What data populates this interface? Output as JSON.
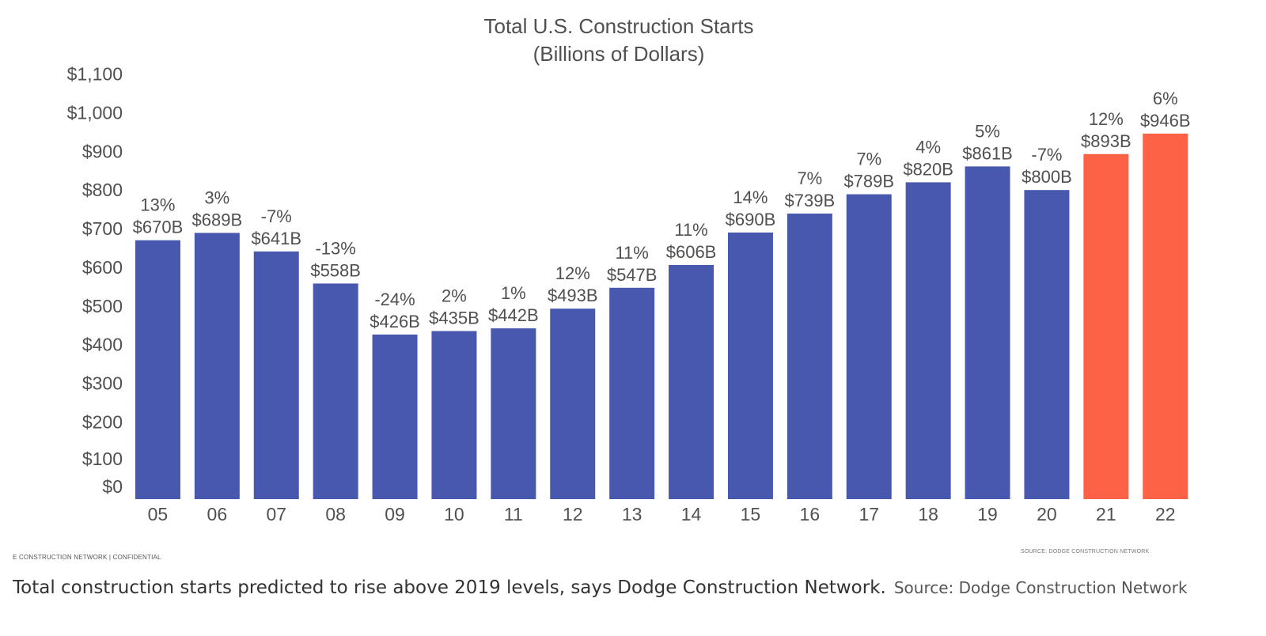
{
  "chart_data": {
    "type": "bar",
    "title": "Total U.S. Construction Starts",
    "subtitle": "(Billions of Dollars)",
    "categories": [
      "05",
      "06",
      "07",
      "08",
      "09",
      "10",
      "11",
      "12",
      "13",
      "14",
      "15",
      "16",
      "17",
      "18",
      "19",
      "20",
      "21",
      "22"
    ],
    "values": [
      670,
      689,
      641,
      558,
      426,
      435,
      442,
      493,
      547,
      606,
      690,
      739,
      789,
      820,
      861,
      800,
      893,
      946
    ],
    "value_labels": [
      "$670B",
      "$689B",
      "$641B",
      "$558B",
      "$426B",
      "$435B",
      "$442B",
      "$493B",
      "$547B",
      "$606B",
      "$690B",
      "$739B",
      "$789B",
      "$820B",
      "$861B",
      "$800B",
      "$893B",
      "$946B"
    ],
    "pct_labels": [
      "13%",
      "3%",
      "-7%",
      "-13%",
      "-24%",
      "2%",
      "1%",
      "12%",
      "11%",
      "11%",
      "14%",
      "7%",
      "7%",
      "4%",
      "5%",
      "-7%",
      "12%",
      "6%"
    ],
    "y_ticks": [
      0,
      100,
      200,
      300,
      400,
      500,
      600,
      700,
      800,
      900,
      1000,
      1100
    ],
    "y_tick_labels": [
      "$0",
      "$100",
      "$200",
      "$300",
      "$400",
      "$500",
      "$600",
      "$700",
      "$800",
      "$900",
      "$1,000",
      "$1,100"
    ],
    "ylim": [
      0,
      1100
    ],
    "forecast_start_index": 16,
    "colors": {
      "actual": "#4858AE",
      "forecast": "#FD6246"
    },
    "grid": false,
    "legend": "none"
  },
  "footer": {
    "left": "E CONSTRUCTION NETWORK | CONFIDENTIAL",
    "right": "SOURCE: DODGE CONSTRUCTION NETWORK"
  },
  "caption": {
    "text": "Total construction starts predicted to rise above 2019 levels, says Dodge Construction Network.",
    "source": "Source: Dodge Construction Network"
  }
}
